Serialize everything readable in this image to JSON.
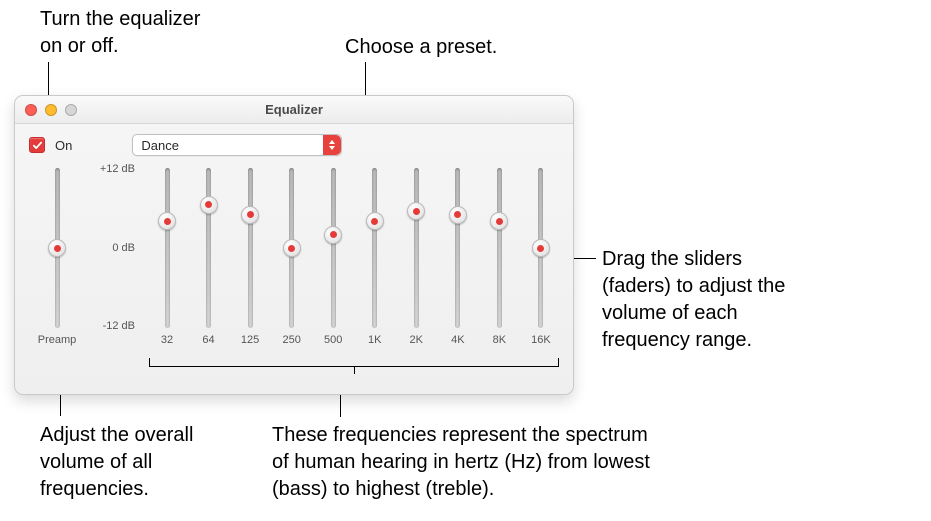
{
  "callouts": {
    "onoff": "Turn the equalizer\non or off.",
    "preset": "Choose a preset.",
    "sliders": "Drag the sliders\n(faders) to adjust the\nvolume of each\nfrequency range.",
    "preamp": "Adjust the overall\nvolume of all\nfrequencies.",
    "freqs": "These frequencies represent the spectrum\nof human hearing in hertz (Hz) from lowest\n(bass) to highest (treble)."
  },
  "window": {
    "title": "Equalizer",
    "on_label": "On",
    "on_checked": true,
    "preset_value": "Dance",
    "preamp_label": "Preamp",
    "db_labels": {
      "top": "+12 dB",
      "mid": "0 dB",
      "bot": "-12 dB"
    },
    "accent": "#e43b3a",
    "preamp_value": 0,
    "slider_range": [
      -12,
      12
    ],
    "bands": [
      {
        "freq": "32",
        "value": 4.0
      },
      {
        "freq": "64",
        "value": 6.5
      },
      {
        "freq": "125",
        "value": 5.0
      },
      {
        "freq": "250",
        "value": 0.0
      },
      {
        "freq": "500",
        "value": 2.0
      },
      {
        "freq": "1K",
        "value": 4.0
      },
      {
        "freq": "2K",
        "value": 5.5
      },
      {
        "freq": "4K",
        "value": 5.0
      },
      {
        "freq": "8K",
        "value": 4.0
      },
      {
        "freq": "16K",
        "value": 0.0
      }
    ]
  }
}
